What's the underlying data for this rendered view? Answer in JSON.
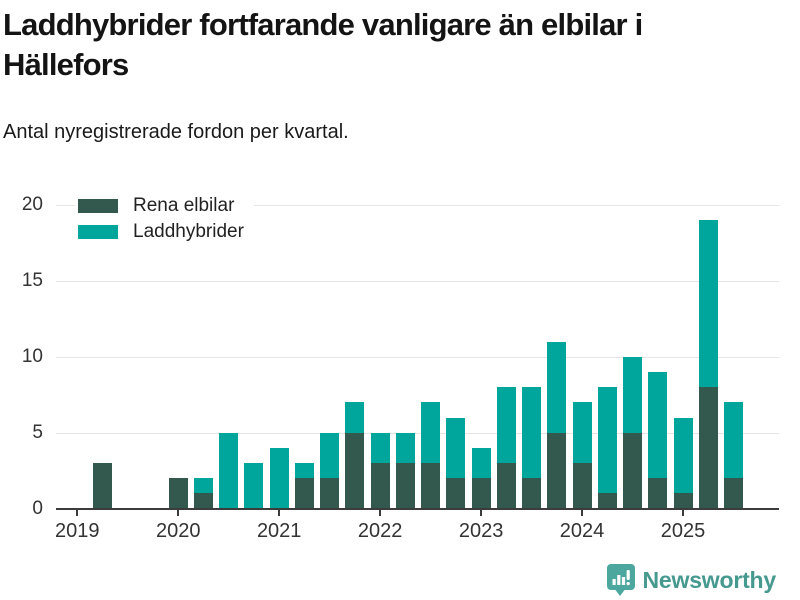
{
  "header": {
    "title_lines": [
      "Laddhybrider fortfarande vanligare än elbilar i",
      "Hällefors"
    ],
    "subtitle": "Antal nyregistrerade fordon per kvartal."
  },
  "chart_data": {
    "type": "bar",
    "stacked": true,
    "title": "Laddhybrider fortfarande vanligare än elbilar i Hällefors",
    "subtitle": "Antal nyregistrerade fordon per kvartal.",
    "categories": [
      "2019 Q1",
      "2019 Q2",
      "2019 Q3",
      "2019 Q4",
      "2020 Q1",
      "2020 Q2",
      "2020 Q3",
      "2020 Q4",
      "2021 Q1",
      "2021 Q2",
      "2021 Q3",
      "2021 Q4",
      "2022 Q1",
      "2022 Q2",
      "2022 Q3",
      "2022 Q4",
      "2023 Q1",
      "2023 Q2",
      "2023 Q3",
      "2023 Q4",
      "2024 Q1",
      "2024 Q2",
      "2024 Q3",
      "2024 Q4",
      "2025 Q1",
      "2025 Q2",
      "2025 Q3"
    ],
    "series": [
      {
        "name": "Rena elbilar",
        "color": "#33594f",
        "values": [
          0,
          3,
          0,
          0,
          2,
          1,
          0,
          0,
          0,
          2,
          2,
          5,
          3,
          3,
          3,
          2,
          2,
          3,
          2,
          5,
          3,
          1,
          5,
          2,
          1,
          8,
          2
        ]
      },
      {
        "name": "Laddhybrider",
        "color": "#00a69b",
        "values": [
          0,
          0,
          0,
          0,
          0,
          1,
          5,
          3,
          4,
          1,
          3,
          2,
          2,
          2,
          4,
          4,
          2,
          5,
          6,
          6,
          4,
          7,
          5,
          7,
          5,
          11,
          5
        ]
      }
    ],
    "x_tick_labels": [
      "2019",
      "2020",
      "2021",
      "2022",
      "2023",
      "2024",
      "2025"
    ],
    "yticks": [
      0,
      5,
      10,
      15,
      20
    ],
    "ylim": [
      0,
      20
    ],
    "grid": "horizontal",
    "legend_position": "top-left",
    "colors": {
      "gridline": "#e4e4e4",
      "axis": "#3c3c3c",
      "tick_label": "#333333"
    }
  },
  "footer": {
    "brand": "Newsworthy",
    "brand_text_color": "#45998f",
    "brand_icon_color": "#4ca89e",
    "icon": "speech-bubble-bar-chart-icon"
  }
}
